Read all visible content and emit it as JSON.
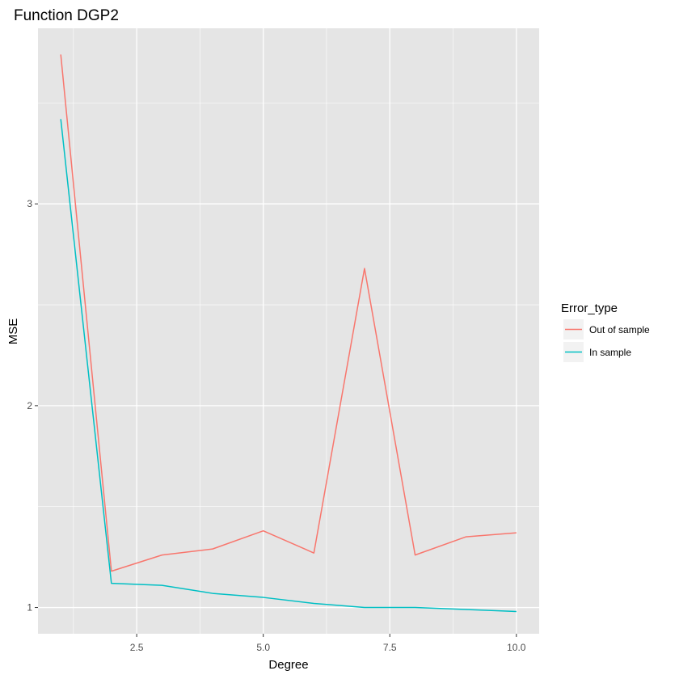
{
  "chart_data": {
    "type": "line",
    "title": "Function DGP2",
    "xlabel": "Degree",
    "ylabel": "MSE",
    "xlim": [
      0.55,
      10.45
    ],
    "ylim": [
      0.87,
      3.87
    ],
    "x_ticks": [
      2.5,
      5.0,
      7.5,
      10.0
    ],
    "x_tick_labels": [
      "2.5",
      "5.0",
      "7.5",
      "10.0"
    ],
    "x_minor_ticks": [
      1.25,
      3.75,
      6.25,
      8.75
    ],
    "y_ticks": [
      1,
      2,
      3
    ],
    "y_tick_labels": [
      "1",
      "2",
      "3"
    ],
    "y_minor_ticks": [
      1.5,
      2.5,
      3.5
    ],
    "grid": true,
    "legend": {
      "title": "Error_type",
      "position": "right",
      "entries": [
        "Out of sample",
        "In sample"
      ]
    },
    "x": [
      1,
      2,
      3,
      4,
      5,
      6,
      7,
      8,
      9,
      10
    ],
    "series": [
      {
        "name": "Out of sample",
        "color": "#F8766D",
        "values": [
          3.74,
          1.18,
          1.26,
          1.29,
          1.38,
          1.27,
          2.68,
          1.26,
          1.35,
          1.37
        ]
      },
      {
        "name": "In sample",
        "color": "#00BFC4",
        "values": [
          3.42,
          1.12,
          1.11,
          1.07,
          1.05,
          1.02,
          1.0,
          1.0,
          0.99,
          0.98
        ]
      }
    ],
    "panel_background": "#E5E5E5",
    "grid_color": "#FFFFFF"
  }
}
